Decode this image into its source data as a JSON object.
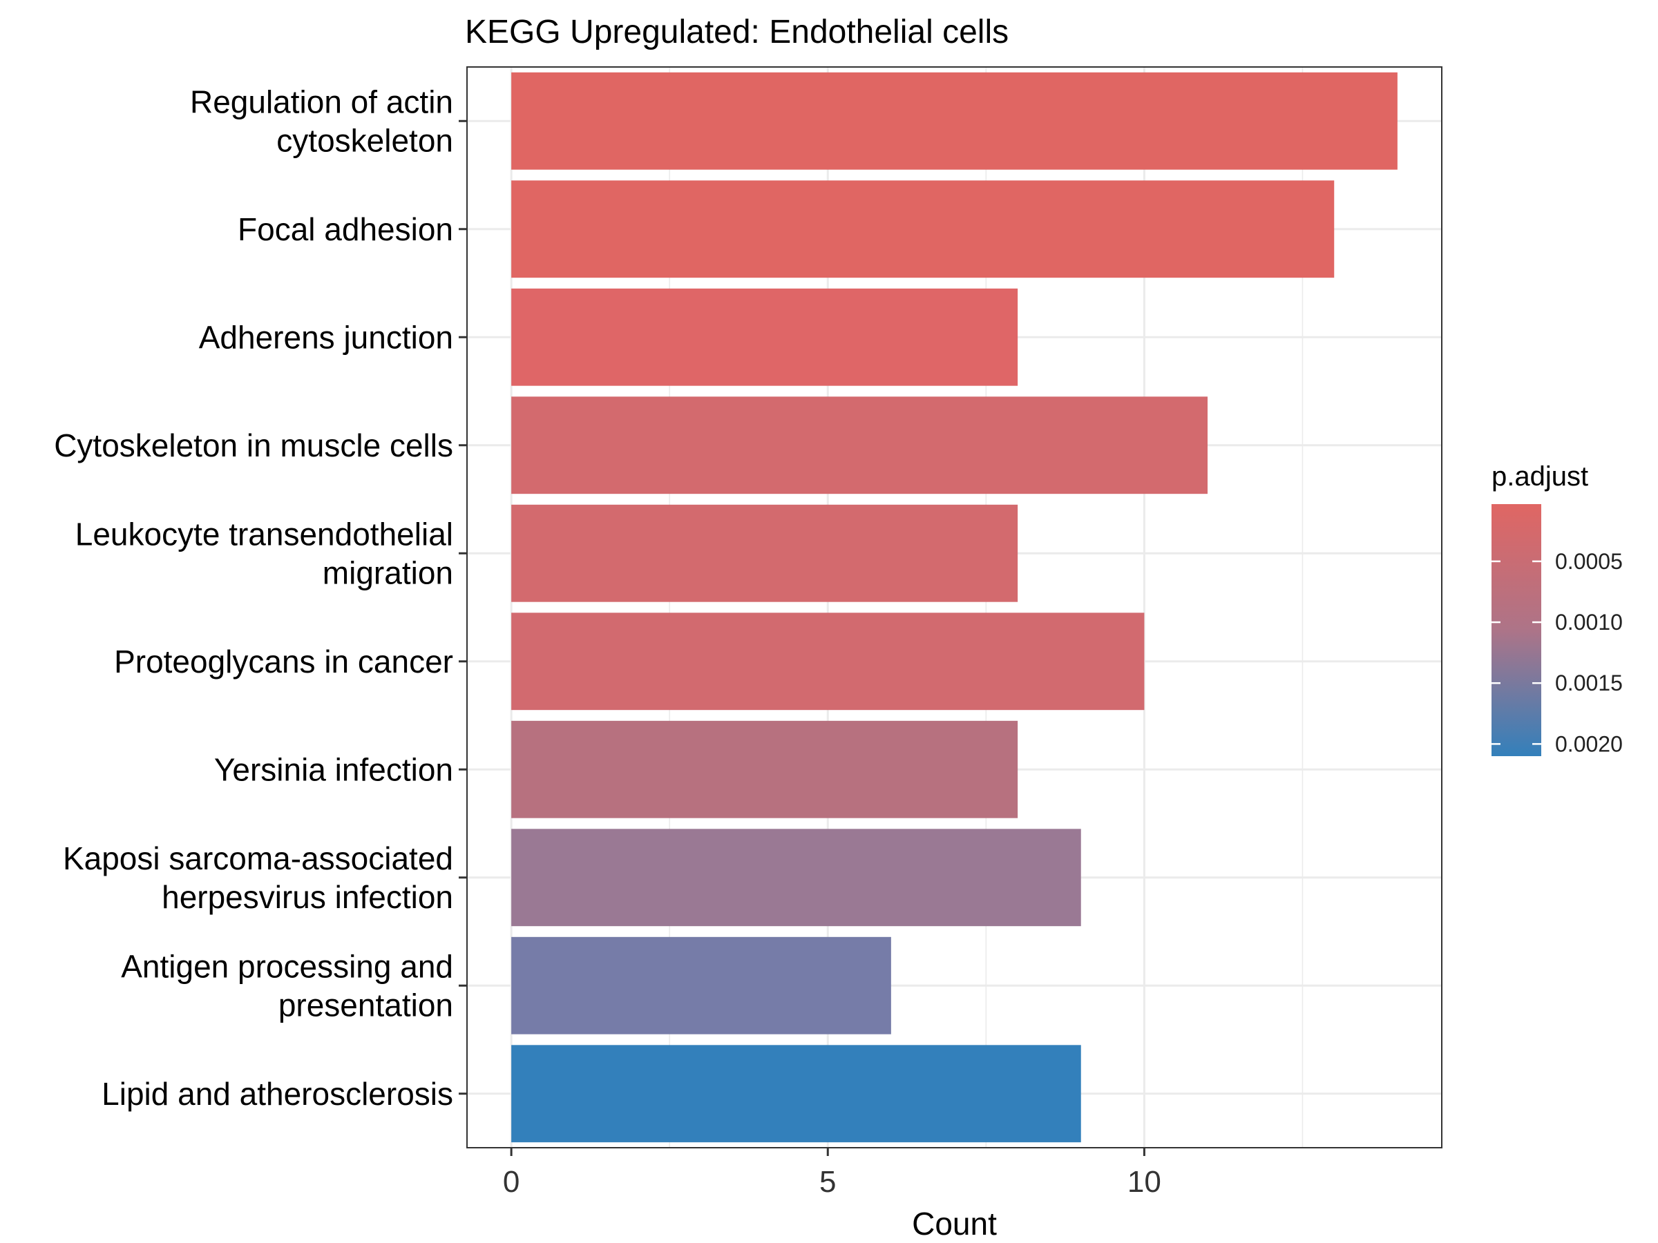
{
  "chart_data": {
    "type": "bar",
    "orientation": "horizontal",
    "title": "KEGG Upregulated: Endothelial cells",
    "xlabel": "Count",
    "ylabel": "",
    "xlim": [
      -0.7,
      14.7
    ],
    "x_ticks": [
      0,
      5,
      10
    ],
    "grid": true,
    "categories": [
      "Regulation of actin cytoskeleton",
      "Focal adhesion",
      "Adherens junction",
      "Cytoskeleton in muscle cells",
      "Leukocyte transendothelial migration",
      "Proteoglycans in cancer",
      "Yersinia infection",
      "Kaposi sarcoma-associated herpesvirus infection",
      "Antigen processing and presentation",
      "Lipid and atherosclerosis"
    ],
    "category_label_lines": [
      [
        "Regulation of actin",
        "cytoskeleton"
      ],
      [
        "Focal adhesion"
      ],
      [
        "Adherens junction"
      ],
      [
        "Cytoskeleton in muscle cells"
      ],
      [
        "Leukocyte transendothelial",
        "migration"
      ],
      [
        "Proteoglycans in cancer"
      ],
      [
        "Yersinia infection"
      ],
      [
        "Kaposi sarcoma-associated",
        "herpesvirus infection"
      ],
      [
        "Antigen processing and",
        "presentation"
      ],
      [
        "Lipid and atherosclerosis"
      ]
    ],
    "values": [
      14,
      13,
      8,
      11,
      8,
      10,
      8,
      9,
      6,
      9
    ],
    "color_values": [
      3e-05,
      3e-05,
      0.00012,
      0.0003,
      0.0003,
      0.0003,
      0.0008,
      0.0012,
      0.0016,
      0.0021
    ],
    "bar_colors": [
      "#e06663",
      "#e06663",
      "#df6667",
      "#d36a6e",
      "#d36a6e",
      "#d26a6f",
      "#b7717f",
      "#9a7994",
      "#767ca8",
      "#3380bb"
    ],
    "color_legend": {
      "title": "p.adjust",
      "ticks": [
        "0.0005",
        "0.0010",
        "0.0015",
        "0.0020"
      ],
      "tick_values": [
        0.0005,
        0.001,
        0.0015,
        0.002
      ],
      "range": [
        3e-05,
        0.0021
      ],
      "low_color": "#e06663",
      "high_color": "#3380bb",
      "placement": "right"
    }
  }
}
